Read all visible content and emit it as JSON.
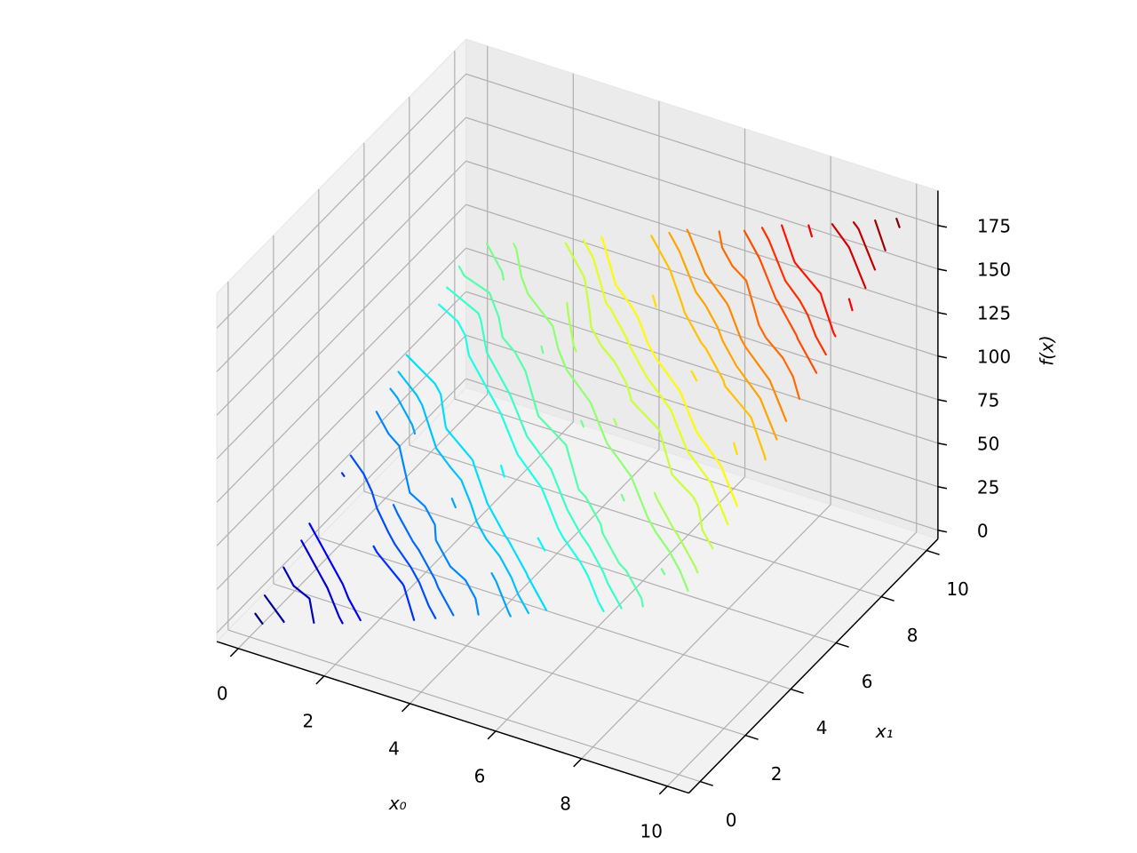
{
  "chart_data": {
    "type": "contour3d",
    "x": [
      0,
      1,
      2,
      3,
      4,
      5,
      6,
      7,
      8,
      9,
      10
    ],
    "y": [
      0,
      1,
      2,
      3,
      4,
      5,
      6,
      7,
      8,
      9,
      10
    ],
    "z": [
      [
        2,
        14,
        16,
        30,
        34,
        47,
        52,
        66,
        70,
        84,
        88
      ],
      [
        12,
        16,
        30,
        35,
        45,
        52,
        63,
        70,
        78,
        88,
        96
      ],
      [
        18,
        30,
        36,
        48,
        55,
        66,
        70,
        82,
        90,
        100,
        104
      ],
      [
        30,
        34,
        48,
        52,
        64,
        70,
        82,
        88,
        98,
        104,
        116
      ],
      [
        36,
        48,
        55,
        66,
        72,
        84,
        90,
        102,
        108,
        120,
        124
      ],
      [
        48,
        52,
        66,
        70,
        82,
        88,
        100,
        108,
        118,
        124,
        136
      ],
      [
        54,
        66,
        72,
        84,
        90,
        102,
        108,
        120,
        126,
        138,
        142
      ],
      [
        66,
        70,
        84,
        88,
        100,
        106,
        118,
        126,
        136,
        142,
        154
      ],
      [
        72,
        84,
        90,
        102,
        108,
        120,
        126,
        138,
        144,
        156,
        162
      ],
      [
        84,
        88,
        102,
        106,
        118,
        124,
        136,
        144,
        154,
        160,
        172
      ],
      [
        90,
        102,
        108,
        120,
        126,
        138,
        144,
        156,
        162,
        174,
        182
      ]
    ],
    "levels": [
      5,
      10,
      15,
      20,
      25,
      30,
      35,
      40,
      45,
      50,
      55,
      60,
      65,
      70,
      75,
      80,
      85,
      90,
      95,
      100,
      105,
      110,
      115,
      120,
      125,
      130,
      135,
      140,
      145,
      150,
      155,
      160,
      165,
      170,
      175,
      180
    ],
    "colormap": "jet",
    "xlabel": "x₀",
    "ylabel": "x₁",
    "zlabel": "f(x)",
    "xlim": [
      -0.5,
      10.5
    ],
    "ylim": [
      -0.5,
      10.5
    ],
    "zlim": [
      -5,
      195
    ],
    "xticks": [
      0,
      2,
      4,
      6,
      8,
      10
    ],
    "yticks": [
      0,
      2,
      4,
      6,
      8,
      10
    ],
    "zticks": [
      0,
      25,
      50,
      75,
      100,
      125,
      150,
      175
    ],
    "grid": true
  }
}
